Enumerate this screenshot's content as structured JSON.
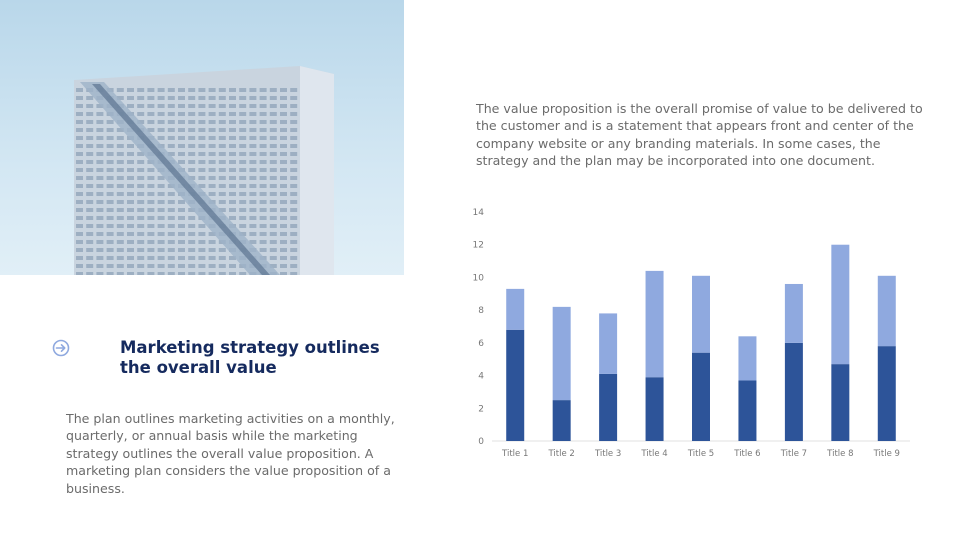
{
  "top_paragraph": "The value proposition is the overall promise of value to be delivered to the customer and is a statement that appears front and center of the company website or any branding materials. In some cases, the strategy and the plan may be incorporated into one document.",
  "heading": "Marketing strategy outlines the overall value",
  "bottom_paragraph": "The plan outlines marketing activities on a monthly, quarterly, or annual basis while the marketing strategy outlines the overall value proposition. A marketing plan considers the value proposition of a business.",
  "icons": {
    "heading_icon": "arrow-right-circle-icon"
  },
  "colors": {
    "heading": "#152a5e",
    "series_bottom": "#2d5499",
    "series_top": "#8fa9df",
    "icon": "#8fa9df"
  },
  "chart_data": {
    "type": "bar",
    "stacked": true,
    "categories": [
      "Title 1",
      "Title 2",
      "Title 3",
      "Title 4",
      "Title 5",
      "Title 6",
      "Title 7",
      "Title 8",
      "Title 9"
    ],
    "series": [
      {
        "values": [
          6.8,
          2.5,
          4.1,
          3.9,
          5.4,
          3.7,
          6.0,
          4.7,
          5.8
        ],
        "color": "#2d5499"
      },
      {
        "values": [
          2.5,
          5.7,
          3.7,
          6.5,
          4.7,
          2.7,
          3.6,
          7.3,
          4.3
        ],
        "color": "#8fa9df"
      }
    ],
    "yticks": [
      0,
      2,
      4,
      6,
      8,
      10,
      12,
      14
    ],
    "ylim": [
      0,
      14
    ],
    "grid": false,
    "legend": "none"
  }
}
